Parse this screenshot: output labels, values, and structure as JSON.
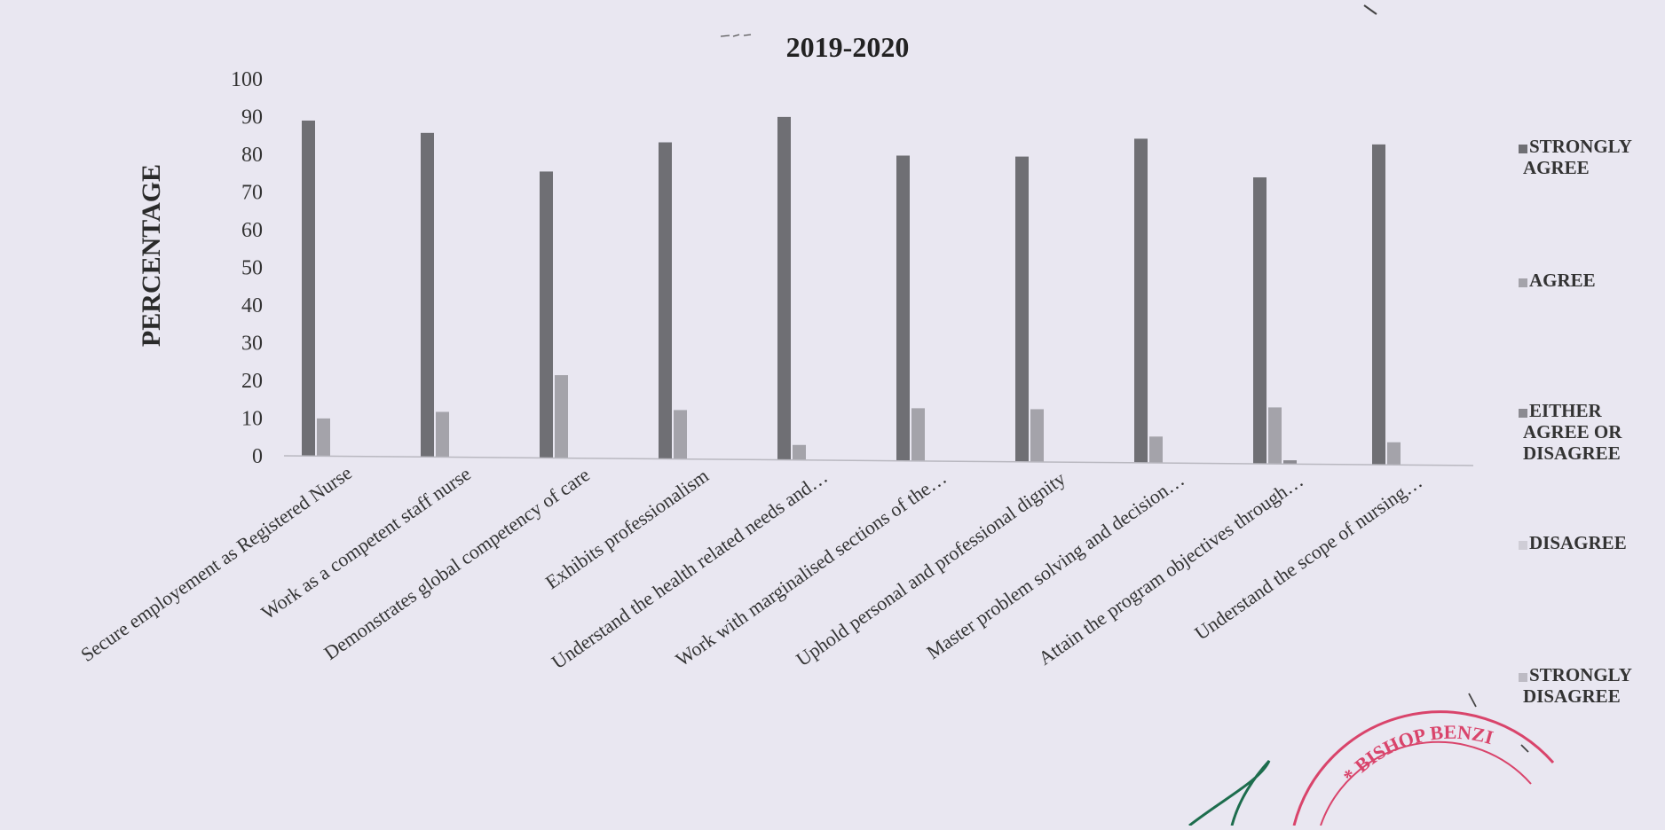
{
  "chart_data": {
    "type": "bar",
    "title": "2019-2020",
    "ylabel": "PERCENTAGE",
    "xlabel": "",
    "ylim": [
      0,
      100
    ],
    "yticks": [
      0,
      10,
      20,
      30,
      40,
      50,
      60,
      70,
      80,
      90,
      100
    ],
    "grid": false,
    "legend_position": "right",
    "categories": [
      "Secure employement as Registered Nurse",
      "Work as a competent staff nurse",
      "Demonstrates global competency of care",
      "Exhibits professionalism",
      "Understand the health related needs and…",
      "Work with marginalised sections of the…",
      "Uphold personal and professional dignity",
      "Master problem solving and decision…",
      "Attain the program objectives through…",
      "Understand the scope of nursing…"
    ],
    "series": [
      {
        "name": "STRONGLY AGREE",
        "color": "#6f6f74",
        "values": [
          89,
          86,
          76,
          84,
          91,
          81,
          81,
          86,
          76,
          85
        ]
      },
      {
        "name": "AGREE",
        "color": "#a4a3aa",
        "values": [
          10,
          12,
          22,
          13,
          4,
          14,
          14,
          7,
          15,
          6
        ]
      },
      {
        "name": "EITHER AGREE OR DISAGREE",
        "color": "#8b8a91",
        "values": [
          0,
          0,
          0,
          0,
          0,
          0,
          0,
          0,
          1,
          0
        ]
      },
      {
        "name": "DISAGREE",
        "color": "#cfcdd6",
        "values": [
          0,
          0,
          0,
          0,
          0,
          0,
          0,
          0,
          0,
          0
        ]
      },
      {
        "name": "STRONGLY DISAGREE",
        "color": "#bdbbc4",
        "values": [
          0,
          0,
          0,
          0,
          0,
          0,
          0,
          0,
          0,
          0
        ]
      }
    ],
    "legend_labels": [
      [
        "STRONGLY",
        "AGREE"
      ],
      [
        "AGREE"
      ],
      [
        "EITHER",
        "AGREE OR",
        "DISAGREE"
      ],
      [
        "DISAGREE"
      ],
      [
        "STRONGLY",
        "DISAGREE"
      ]
    ]
  },
  "stamp": {
    "text": "BISHOP BENZI"
  }
}
